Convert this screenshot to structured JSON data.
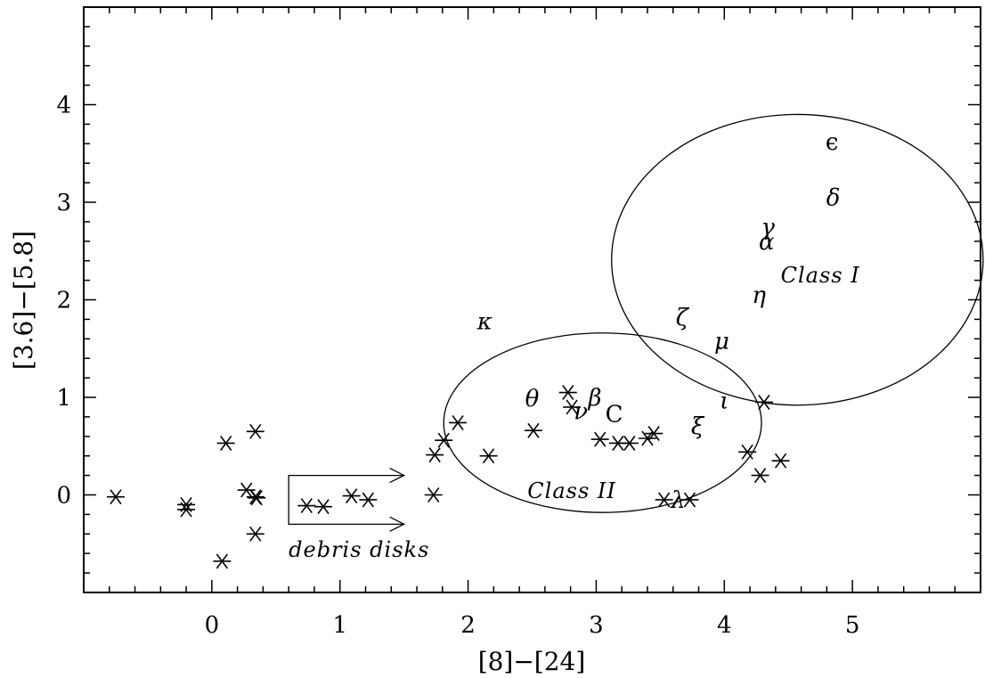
{
  "chart_data": {
    "type": "scatter",
    "xlabel": "[8]−[24]",
    "ylabel": "[3.6]−[5.8]",
    "xlim": [
      -1.0,
      6.0
    ],
    "ylim": [
      -1.0,
      5.0
    ],
    "x_ticks": [
      0,
      1,
      2,
      3,
      4,
      5
    ],
    "y_ticks": [
      0,
      1,
      2,
      3,
      4
    ],
    "x_tick_labels": [
      "0",
      "1",
      "2",
      "3",
      "4",
      "5"
    ],
    "y_tick_labels": [
      "0",
      "1",
      "2",
      "3",
      "4"
    ],
    "grid": false,
    "marker": "asterisk",
    "points": [
      {
        "x": -0.75,
        "y": -0.02
      },
      {
        "x": -0.2,
        "y": -0.1
      },
      {
        "x": -0.2,
        "y": -0.15
      },
      {
        "x": 0.08,
        "y": -0.68
      },
      {
        "x": 0.11,
        "y": 0.53
      },
      {
        "x": 0.27,
        "y": 0.05
      },
      {
        "x": 0.34,
        "y": 0.65
      },
      {
        "x": 0.34,
        "y": -0.02
      },
      {
        "x": 0.35,
        "y": -0.03
      },
      {
        "x": 0.34,
        "y": -0.4
      },
      {
        "x": 0.74,
        "y": -0.11
      },
      {
        "x": 0.87,
        "y": -0.12
      },
      {
        "x": 1.09,
        "y": -0.01
      },
      {
        "x": 1.22,
        "y": -0.05
      },
      {
        "x": 1.73,
        "y": 0.0
      },
      {
        "x": 1.74,
        "y": 0.41
      },
      {
        "x": 1.81,
        "y": 0.56
      },
      {
        "x": 1.92,
        "y": 0.74
      },
      {
        "x": 2.16,
        "y": 0.4
      },
      {
        "x": 2.51,
        "y": 0.66
      },
      {
        "x": 2.78,
        "y": 1.05
      },
      {
        "x": 2.81,
        "y": 0.9
      },
      {
        "x": 3.03,
        "y": 0.57
      },
      {
        "x": 3.17,
        "y": 0.53
      },
      {
        "x": 3.26,
        "y": 0.53
      },
      {
        "x": 3.4,
        "y": 0.58
      },
      {
        "x": 3.45,
        "y": 0.63
      },
      {
        "x": 3.53,
        "y": -0.05
      },
      {
        "x": 3.73,
        "y": -0.05
      },
      {
        "x": 4.18,
        "y": 0.44
      },
      {
        "x": 4.28,
        "y": 0.2
      },
      {
        "x": 4.31,
        "y": 0.95
      },
      {
        "x": 4.44,
        "y": 0.35
      }
    ],
    "labels": [
      {
        "text": "ϵ",
        "x": 4.84,
        "y": 3.62,
        "style": "upright"
      },
      {
        "text": "δ",
        "x": 4.85,
        "y": 3.05,
        "style": "italic"
      },
      {
        "text": "γ",
        "x": 4.34,
        "y": 2.75,
        "style": "italic"
      },
      {
        "text": "α",
        "x": 4.33,
        "y": 2.6,
        "style": "italic"
      },
      {
        "text": "η",
        "x": 4.27,
        "y": 2.05,
        "style": "italic"
      },
      {
        "text": "ζ",
        "x": 3.67,
        "y": 1.82,
        "style": "italic"
      },
      {
        "text": "μ",
        "x": 3.98,
        "y": 1.58,
        "style": "italic"
      },
      {
        "text": "κ",
        "x": 2.13,
        "y": 1.78,
        "style": "italic"
      },
      {
        "text": "θ",
        "x": 2.5,
        "y": 0.99,
        "style": "italic"
      },
      {
        "text": "ν",
        "x": 2.88,
        "y": 0.86,
        "style": "italic"
      },
      {
        "text": "β",
        "x": 2.99,
        "y": 1.0,
        "style": "italic"
      },
      {
        "text": "C",
        "x": 3.14,
        "y": 0.83,
        "style": "upright"
      },
      {
        "text": "ι",
        "x": 4.0,
        "y": 0.97,
        "style": "italic"
      },
      {
        "text": "ξ",
        "x": 3.79,
        "y": 0.71,
        "style": "italic"
      },
      {
        "text": "λ",
        "x": 3.64,
        "y": -0.05,
        "style": "italic"
      }
    ],
    "regions": [
      {
        "label": "Class I",
        "label_x": 4.75,
        "label_y": 2.25,
        "ellipse": {
          "cx": 4.57,
          "cy": 2.41,
          "rx": 1.45,
          "ry": 1.49
        }
      },
      {
        "label": "Class II",
        "label_x": 2.81,
        "label_y": 0.04,
        "ellipse": {
          "cx": 3.05,
          "cy": 0.74,
          "rx": 1.24,
          "ry": 0.92
        }
      }
    ],
    "debris": {
      "label": "debris disks",
      "label_x": 1.15,
      "label_y": -0.56,
      "box_x": [
        0.6,
        1.5
      ],
      "box_y": [
        -0.3,
        0.2
      ]
    }
  }
}
